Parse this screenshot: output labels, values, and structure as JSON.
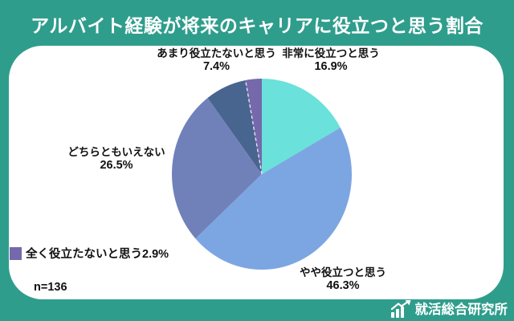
{
  "header": {
    "title": "アルバイト経験が将来のキャリアに役立つと思う割合"
  },
  "chart_data": {
    "type": "pie",
    "title": "アルバイト経験が将来のキャリアに役立つと思う割合",
    "sample_size_label": "n=136",
    "start_angle_deg": 0,
    "direction": "clockwise",
    "legend_position": "bottom-left",
    "slices": [
      {
        "label": "非常に役立つと思う",
        "value": 16.9,
        "pct_label": "16.9%",
        "color": "#6AE1DB"
      },
      {
        "label": "やや役立つと思う",
        "value": 46.3,
        "pct_label": "46.3%",
        "color": "#7CA6E2"
      },
      {
        "label": "どちらともいえない",
        "value": 26.5,
        "pct_label": "26.5%",
        "color": "#7081BA"
      },
      {
        "label": "あまり役立たないと思う",
        "value": 7.4,
        "pct_label": "7.4%",
        "color": "#48658F"
      },
      {
        "label": "全く役立たないと思う",
        "value": 2.9,
        "pct_label": "2.9%",
        "color": "#7568AB",
        "legend_label": "全く役立たないと思う2.9%",
        "dashed_divider_before": true
      }
    ]
  },
  "footer": {
    "brand_text": "就活総合研究所"
  },
  "colors": {
    "background_teal": "#2F9D8C",
    "card_white": "#FFFFFF",
    "label_text": "#111111",
    "title_text": "#FFFFFF"
  }
}
